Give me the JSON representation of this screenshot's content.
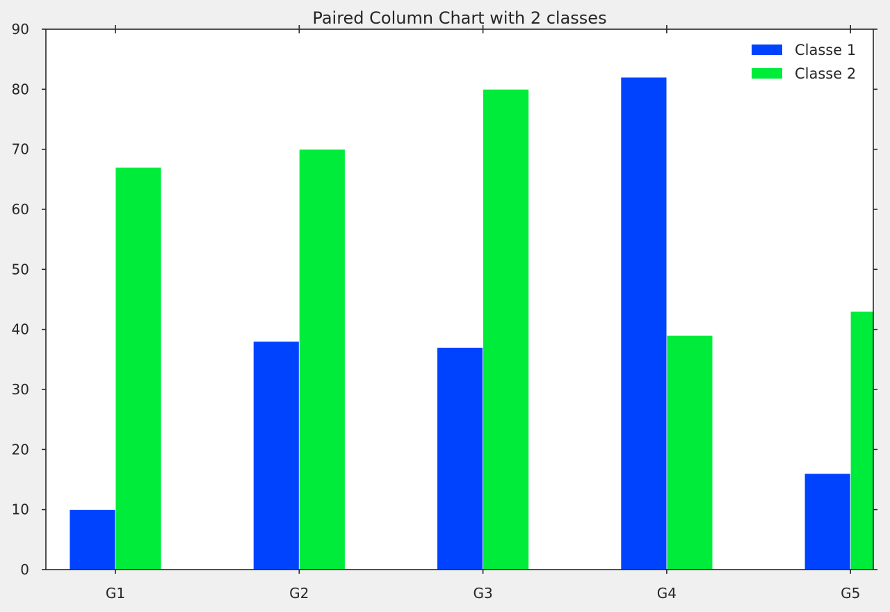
{
  "chart_data": {
    "type": "bar",
    "title": "Paired Column Chart with 2 classes",
    "xlabel": "",
    "ylabel": "",
    "categories": [
      "G1",
      "G2",
      "G3",
      "G4",
      "G5"
    ],
    "series": [
      {
        "name": "Classe 1",
        "values": [
          10,
          38,
          37,
          82,
          16
        ],
        "color": "#0043ff"
      },
      {
        "name": "Classe 2",
        "values": [
          67,
          70,
          80,
          39,
          43
        ],
        "color": "#00ec3a"
      }
    ],
    "ylim": [
      0,
      90
    ],
    "yticks": [
      0,
      10,
      20,
      30,
      40,
      50,
      60,
      70,
      80,
      90
    ],
    "grid": false,
    "legend_position": "top-right"
  }
}
